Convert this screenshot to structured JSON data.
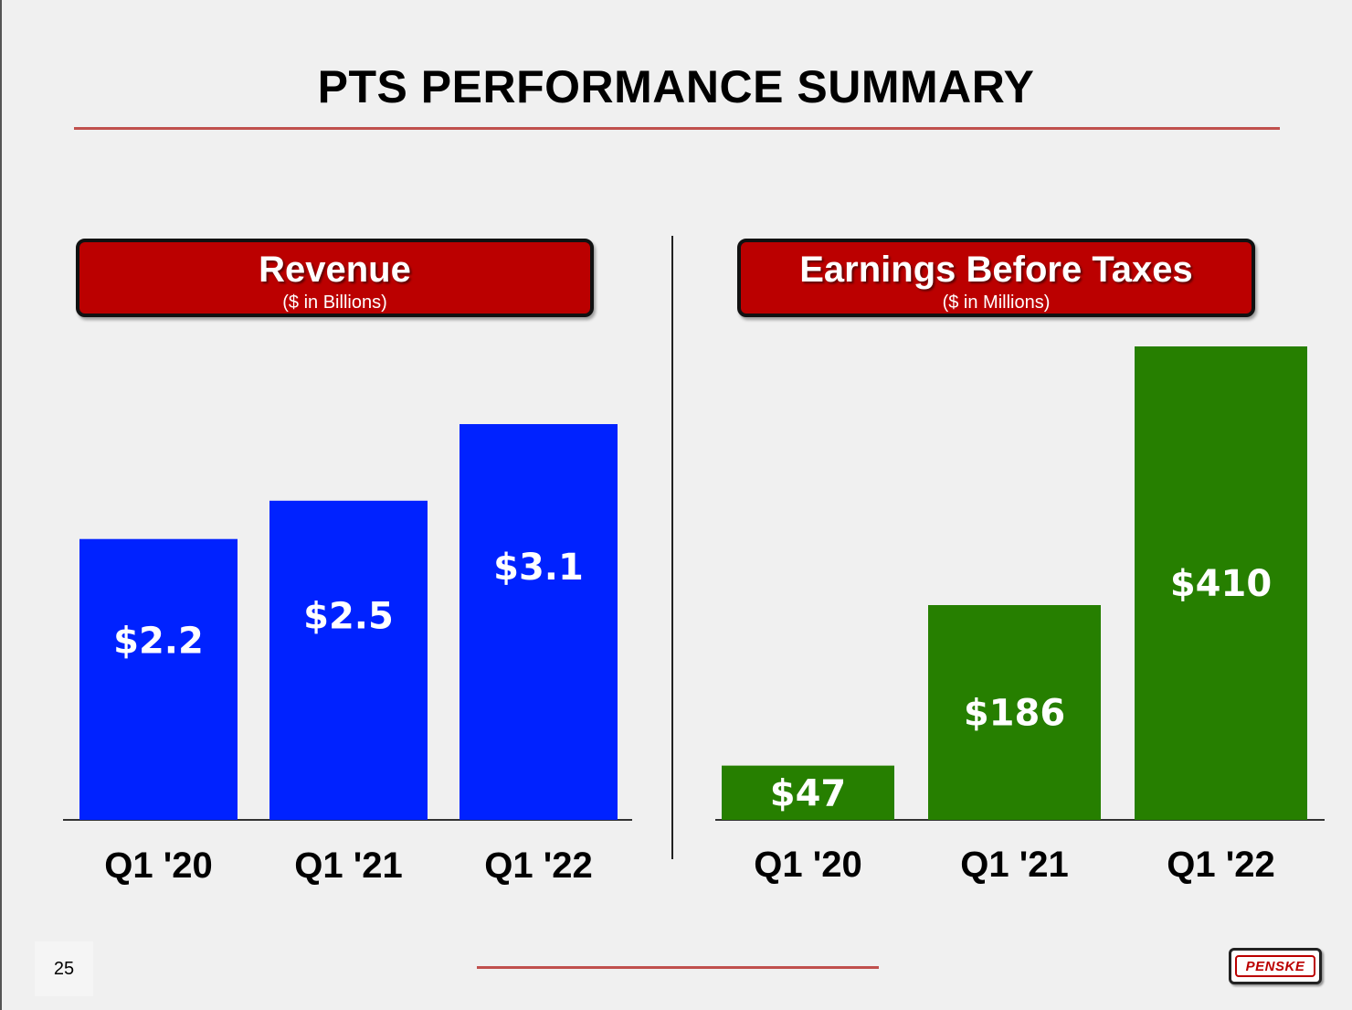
{
  "slide": {
    "title": "PTS PERFORMANCE SUMMARY",
    "page_number": "25",
    "logo_text": "PENSKE",
    "accent_color": "#c0504d",
    "header_color": "#bb0000"
  },
  "panels": {
    "revenue": {
      "title": "Revenue",
      "subtitle": "($ in Billions)"
    },
    "ebt": {
      "title": "Earnings Before Taxes",
      "subtitle": "($ in Millions)"
    }
  },
  "chart_data": [
    {
      "type": "bar",
      "title": "Revenue",
      "subtitle": "($ in Billions)",
      "categories": [
        "Q1 '20",
        "Q1 '21",
        "Q1 '22"
      ],
      "values": [
        2.2,
        2.5,
        3.1
      ],
      "value_labels": [
        "$2.2",
        "$2.5",
        "$3.1"
      ],
      "color": "#0022ff",
      "ylim": [
        0,
        3.1
      ]
    },
    {
      "type": "bar",
      "title": "Earnings Before Taxes",
      "subtitle": "($ in Millions)",
      "categories": [
        "Q1 '20",
        "Q1 '21",
        "Q1 '22"
      ],
      "values": [
        47,
        186,
        410
      ],
      "value_labels": [
        "$47",
        "$186",
        "$410"
      ],
      "color": "#267f00",
      "ylim": [
        0,
        410
      ]
    }
  ]
}
